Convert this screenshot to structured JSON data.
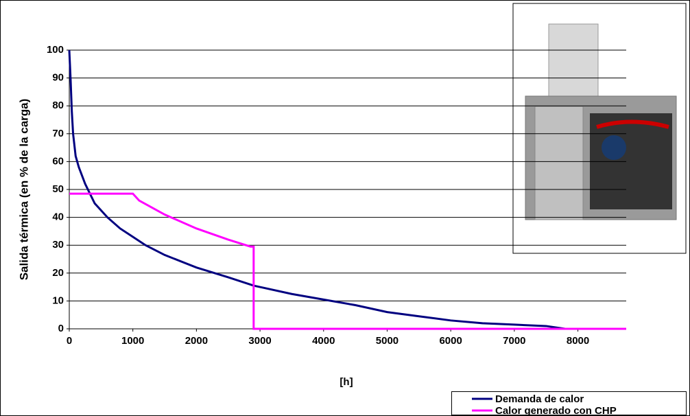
{
  "chart_data": {
    "type": "line",
    "x_label": "[h]",
    "y_label": "Salida térmica (en % de la carga)",
    "xlim": [
      0,
      8760
    ],
    "ylim": [
      0,
      100
    ],
    "xticks": [
      0,
      1000,
      2000,
      3000,
      4000,
      5000,
      6000,
      7000,
      8000
    ],
    "yticks": [
      0,
      10,
      20,
      30,
      40,
      50,
      60,
      70,
      80,
      90,
      100
    ],
    "grid": true,
    "legend": "bottom-right",
    "series": [
      {
        "name": "Demanda de calor",
        "color": "#000080",
        "x": [
          0,
          20,
          40,
          60,
          100,
          150,
          250,
          400,
          600,
          800,
          1000,
          1200,
          1500,
          2000,
          2500,
          2900,
          3500,
          4000,
          4500,
          5000,
          5500,
          6000,
          6500,
          7000,
          7500,
          7800,
          8760
        ],
        "values": [
          100,
          90,
          78,
          70,
          62,
          58,
          52,
          45,
          40,
          36,
          33,
          30,
          26.5,
          22,
          18.5,
          15.5,
          12.5,
          10.5,
          8.5,
          6,
          4.5,
          3,
          2,
          1.5,
          1,
          0,
          0
        ]
      },
      {
        "name": "Calor generado con CHP",
        "color": "#ff00ff",
        "x": [
          0,
          1000,
          1100,
          1500,
          2000,
          2500,
          2850,
          2900,
          2900,
          8760
        ],
        "values": [
          48.5,
          48.5,
          46,
          41,
          36,
          32,
          29.5,
          29.5,
          0,
          0
        ]
      }
    ]
  }
}
